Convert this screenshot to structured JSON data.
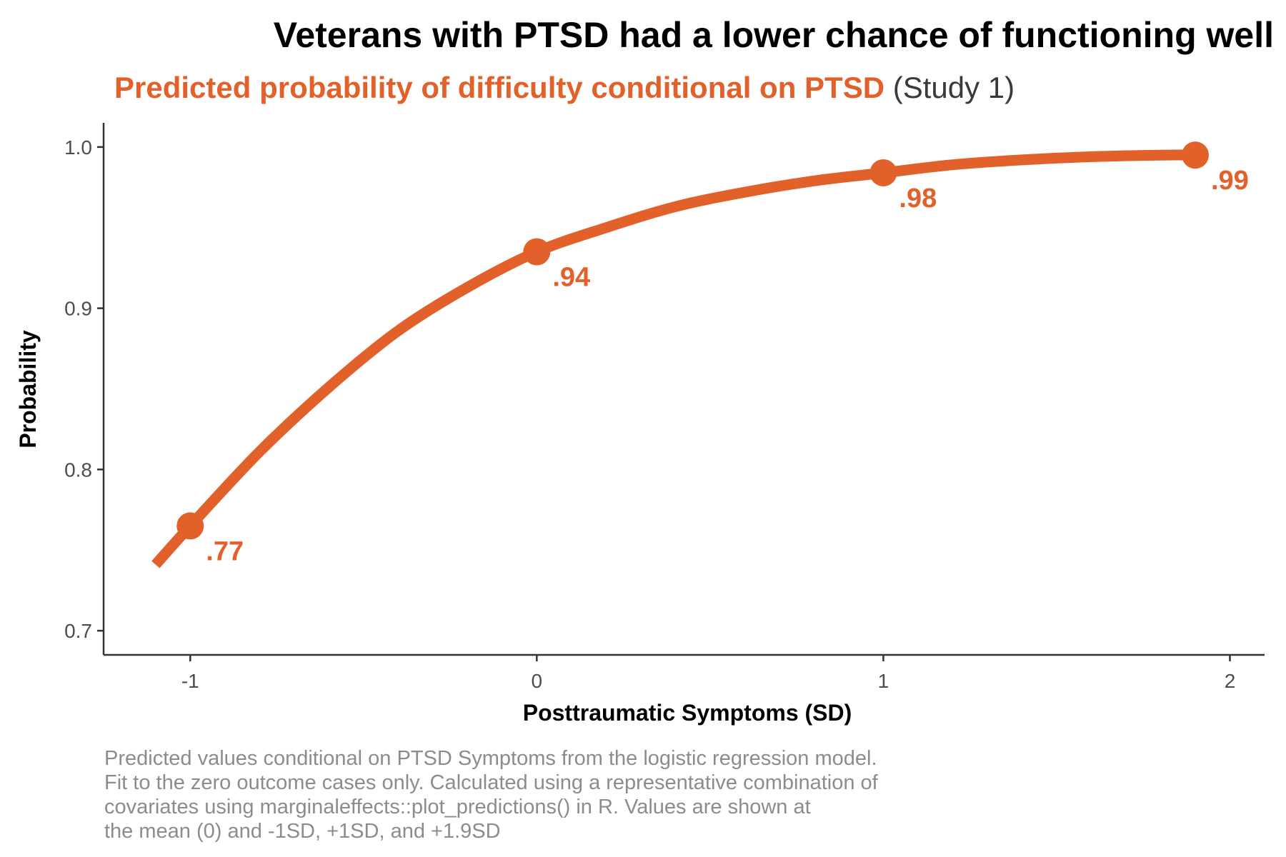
{
  "chart_data": {
    "type": "line",
    "title": "Veterans with PTSD had a lower chance of functioning well",
    "subtitle_highlight": "Predicted probability of difficulty conditional on PTSD",
    "subtitle_rest": " (Study 1)",
    "xlabel": "Posttraumatic Symptoms (SD)",
    "ylabel": "Probability",
    "xlim": [
      -1.25,
      2.1
    ],
    "ylim": [
      0.685,
      1.015
    ],
    "x_ticks": [
      -1,
      0,
      1,
      2
    ],
    "x_tick_labels": [
      "-1",
      "0",
      "1",
      "2"
    ],
    "y_ticks": [
      0.7,
      0.8,
      0.9,
      1.0
    ],
    "y_tick_labels": [
      "0.7",
      "0.8",
      "0.9",
      "1.0"
    ],
    "grid": false,
    "series": [
      {
        "curve": [
          {
            "x": -1.1,
            "y": 0.741
          },
          {
            "x": -1.0,
            "y": 0.765
          },
          {
            "x": -0.8,
            "y": 0.811
          },
          {
            "x": -0.6,
            "y": 0.851
          },
          {
            "x": -0.4,
            "y": 0.886
          },
          {
            "x": -0.2,
            "y": 0.913
          },
          {
            "x": 0.0,
            "y": 0.935
          },
          {
            "x": 0.2,
            "y": 0.95
          },
          {
            "x": 0.4,
            "y": 0.963
          },
          {
            "x": 0.6,
            "y": 0.972
          },
          {
            "x": 0.8,
            "y": 0.979
          },
          {
            "x": 1.0,
            "y": 0.984
          },
          {
            "x": 1.2,
            "y": 0.989
          },
          {
            "x": 1.4,
            "y": 0.992
          },
          {
            "x": 1.6,
            "y": 0.994
          },
          {
            "x": 1.8,
            "y": 0.995
          },
          {
            "x": 1.9,
            "y": 0.995
          }
        ],
        "points": [
          {
            "x": -1.0,
            "y": 0.765,
            "label": ".77"
          },
          {
            "x": 0.0,
            "y": 0.935,
            "label": ".94"
          },
          {
            "x": 1.0,
            "y": 0.984,
            "label": ".98"
          },
          {
            "x": 1.9,
            "y": 0.995,
            "label": ".99"
          }
        ]
      }
    ],
    "caption_lines": [
      "Predicted values conditional on PTSD Symptoms from the logistic regression model.",
      "Fit to the zero outcome cases only. Calculated using a representative combination of",
      "covariates using marginaleffects::plot_predictions() in R. Values are shown at",
      "the mean (0) and -1SD, +1SD, and +1.9SD"
    ]
  },
  "colors": {
    "accent": "#E2602A",
    "axis": "#333333",
    "tick_text": "#4d4d4d",
    "caption": "#8c8c8c",
    "subtitle_rest": "#3a3a3a"
  }
}
